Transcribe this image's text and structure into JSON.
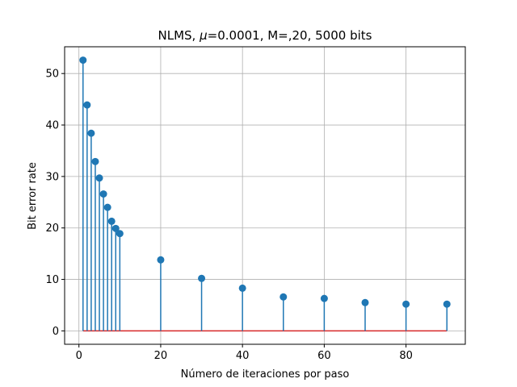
{
  "chart_data": {
    "type": "stem",
    "title": {
      "prefix": "NLMS, ",
      "symbol": "μ",
      "suffix": "=0.0001, M=,20, 5000 bits"
    },
    "xlabel": "Número de iteraciones por paso",
    "ylabel": "Bit error rate",
    "xlim": [
      -3.5,
      94.5
    ],
    "ylim": [
      -2.6,
      55.2
    ],
    "xticks": [
      0,
      20,
      40,
      60,
      80
    ],
    "yticks": [
      0,
      10,
      20,
      30,
      40,
      50
    ],
    "grid": true,
    "baseline": 0,
    "x": [
      1,
      2,
      3,
      4,
      5,
      6,
      7,
      8,
      9,
      10,
      20,
      30,
      40,
      50,
      60,
      70,
      80,
      90
    ],
    "y": [
      52.6,
      43.9,
      38.4,
      32.9,
      29.7,
      26.6,
      24.0,
      21.3,
      19.9,
      18.9,
      13.8,
      10.2,
      8.3,
      6.6,
      6.3,
      5.5,
      5.2,
      5.2
    ],
    "colors": {
      "stem": "#1f77b4",
      "marker": "#1f77b4",
      "baseline": "#d62728",
      "grid": "#b0b0b0",
      "axes": "#000000"
    }
  }
}
